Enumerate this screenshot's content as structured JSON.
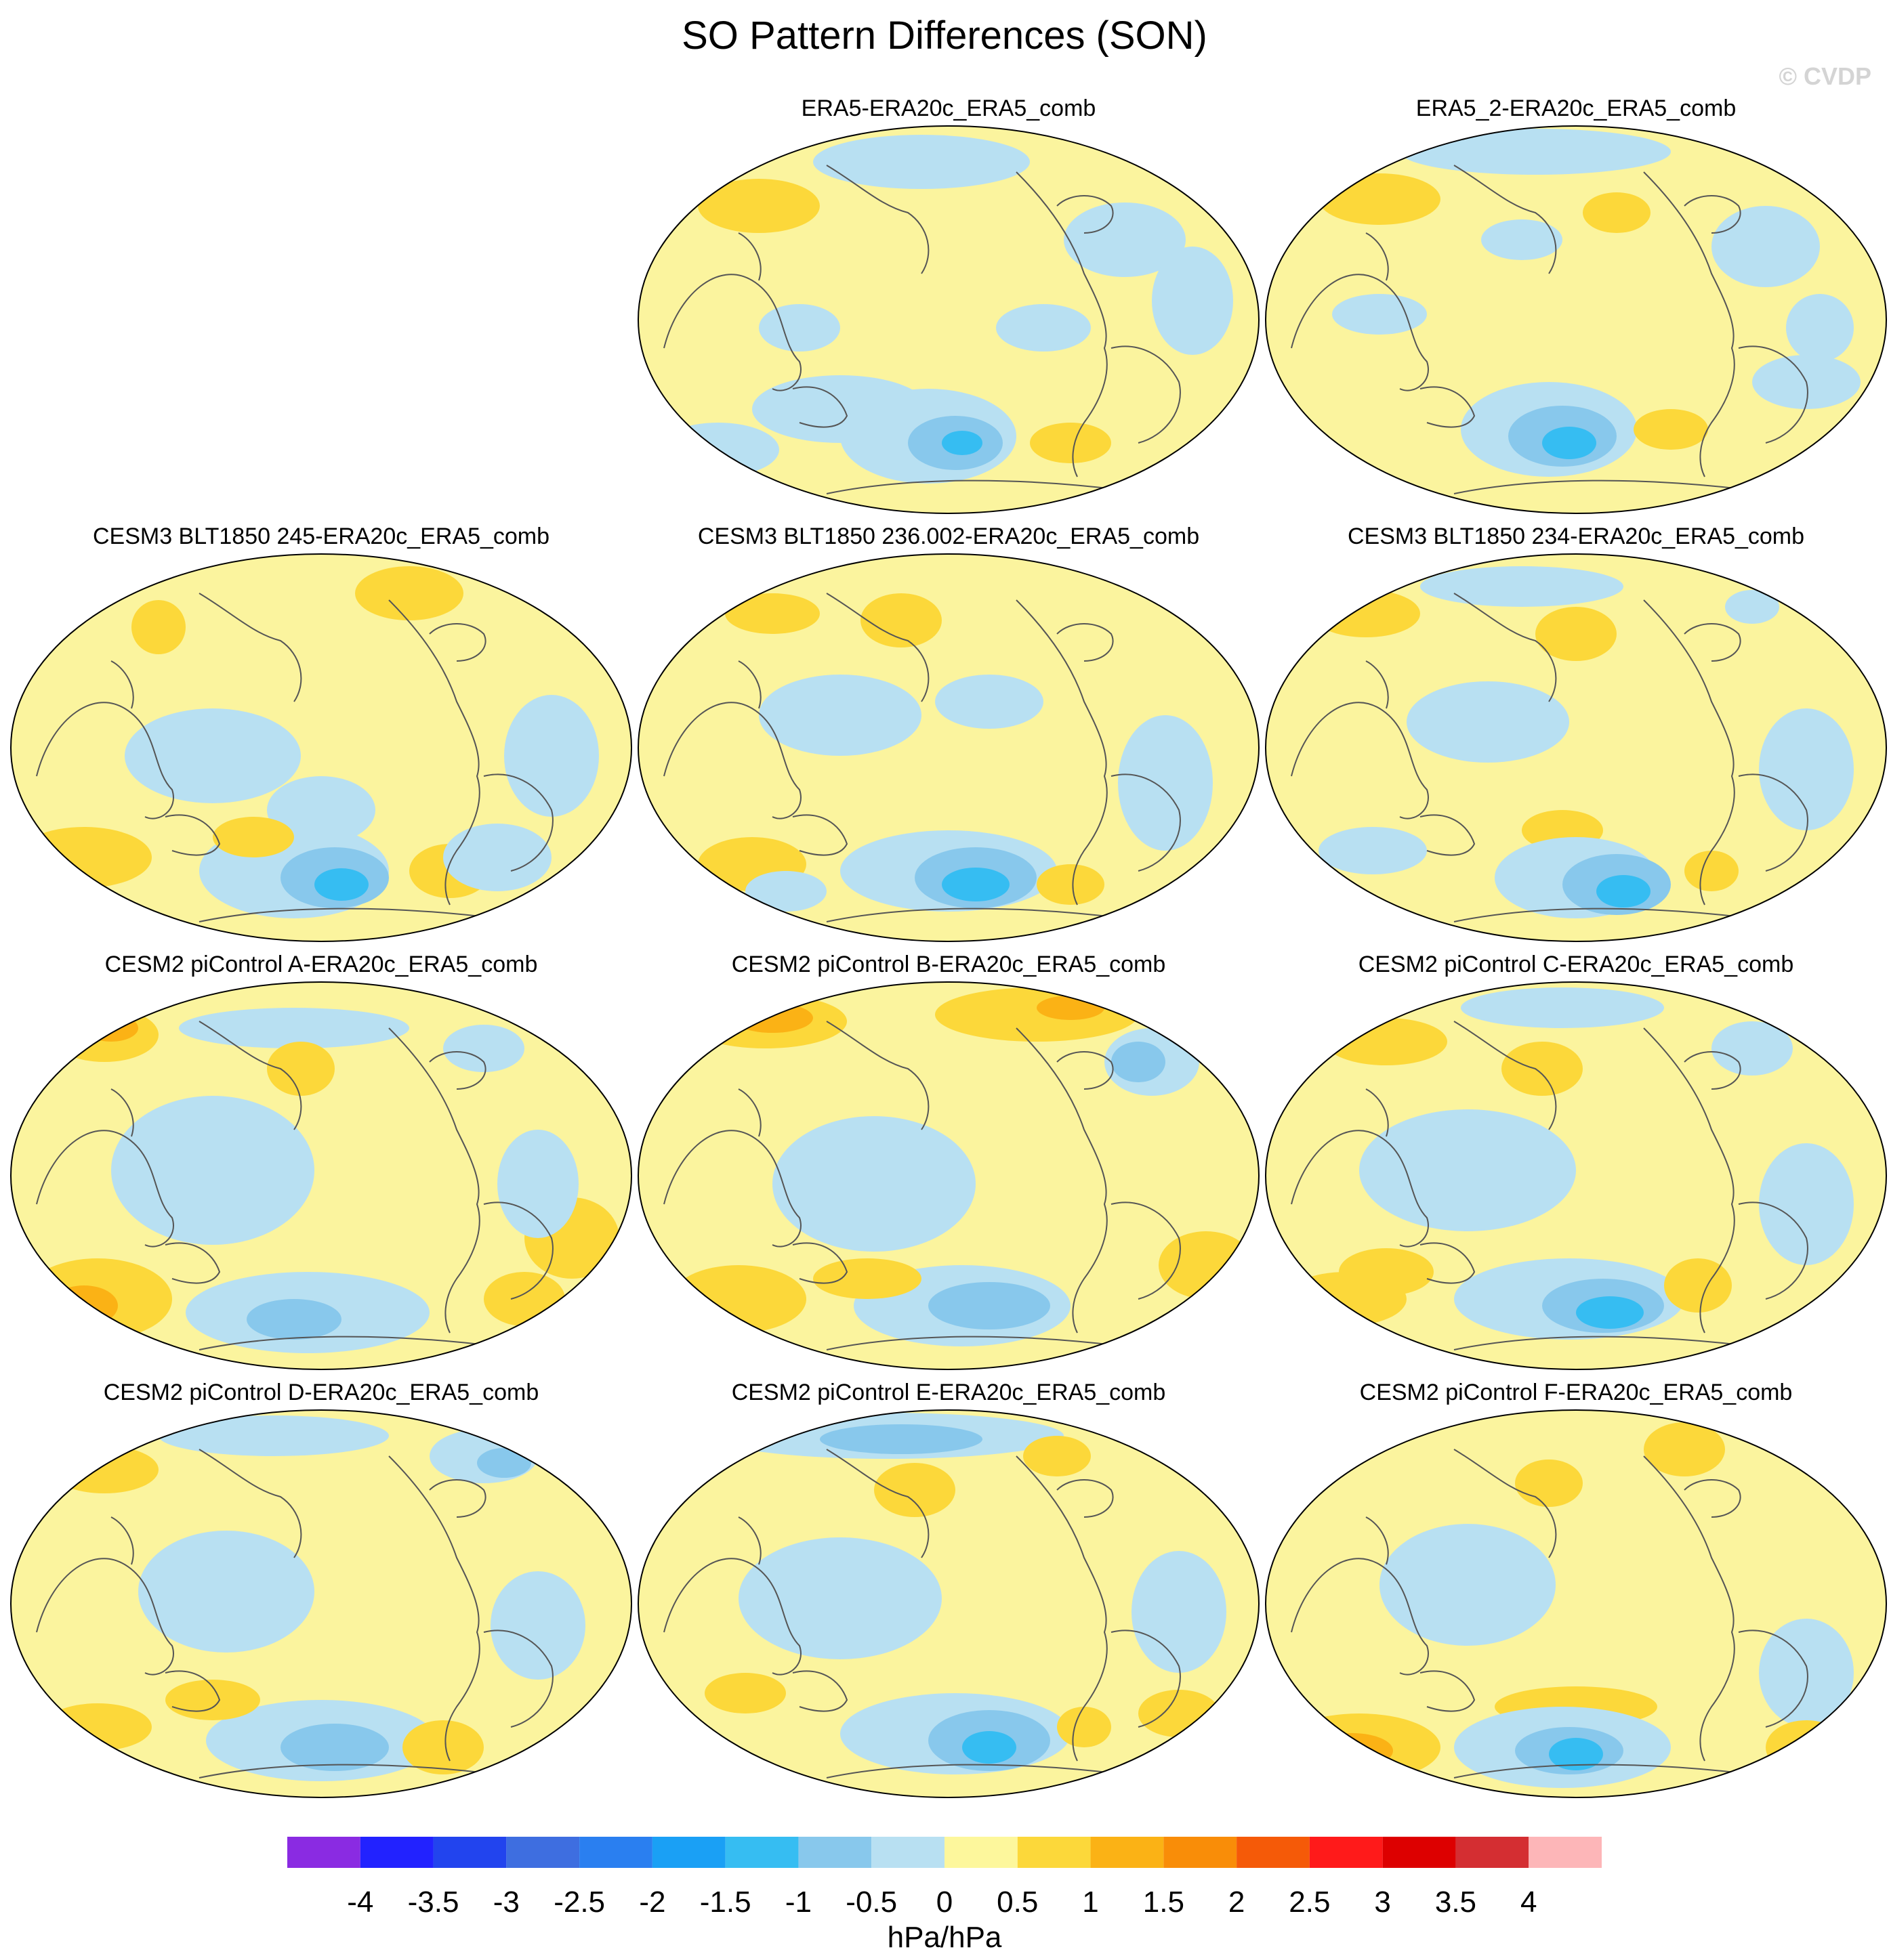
{
  "title": "SO Pattern Differences (SON)",
  "watermark": "© CVDP",
  "panels": [
    {
      "label": "ERA5-ERA20c_ERA5_comb"
    },
    {
      "label": "ERA5_2-ERA20c_ERA5_comb"
    },
    {
      "label": "CESM3 BLT1850 245-ERA20c_ERA5_comb"
    },
    {
      "label": "CESM3 BLT1850 236.002-ERA20c_ERA5_comb"
    },
    {
      "label": "CESM3 BLT1850 234-ERA20c_ERA5_comb"
    },
    {
      "label": "CESM2 piControl A-ERA20c_ERA5_comb"
    },
    {
      "label": "CESM2 piControl B-ERA20c_ERA5_comb"
    },
    {
      "label": "CESM2 piControl C-ERA20c_ERA5_comb"
    },
    {
      "label": "CESM2 piControl D-ERA20c_ERA5_comb"
    },
    {
      "label": "CESM2 piControl E-ERA20c_ERA5_comb"
    },
    {
      "label": "CESM2 piControl F-ERA20c_ERA5_comb"
    }
  ],
  "colorbar": {
    "units": "hPa/hPa",
    "labels": [
      "-4",
      "-3.5",
      "-3",
      "-2.5",
      "-2",
      "-1.5",
      "-1",
      "-0.5",
      "0",
      "0.5",
      "1",
      "1.5",
      "2",
      "2.5",
      "3",
      "3.5",
      "4"
    ],
    "colors": [
      "#8a2be2",
      "#2222ff",
      "#2244ee",
      "#3e6ee0",
      "#2a7ff0",
      "#1aa0f5",
      "#36bdf2",
      "#88c8ec",
      "#b8e0f2",
      "#fdf79c",
      "#fcd83a",
      "#fbb215",
      "#f98d08",
      "#f55a08",
      "#ff1a1a",
      "#dd0000",
      "#d42e32",
      "#fdb6b8"
    ]
  },
  "map_style": {
    "background": "#fbf49e",
    "neg_weak": "#b8e0f2",
    "neg_mid": "#88c8ec",
    "neg_strong": "#36bdf2",
    "pos_weak": "#fcd83a",
    "pos_mid": "#fbb215",
    "coast": "#555555"
  }
}
